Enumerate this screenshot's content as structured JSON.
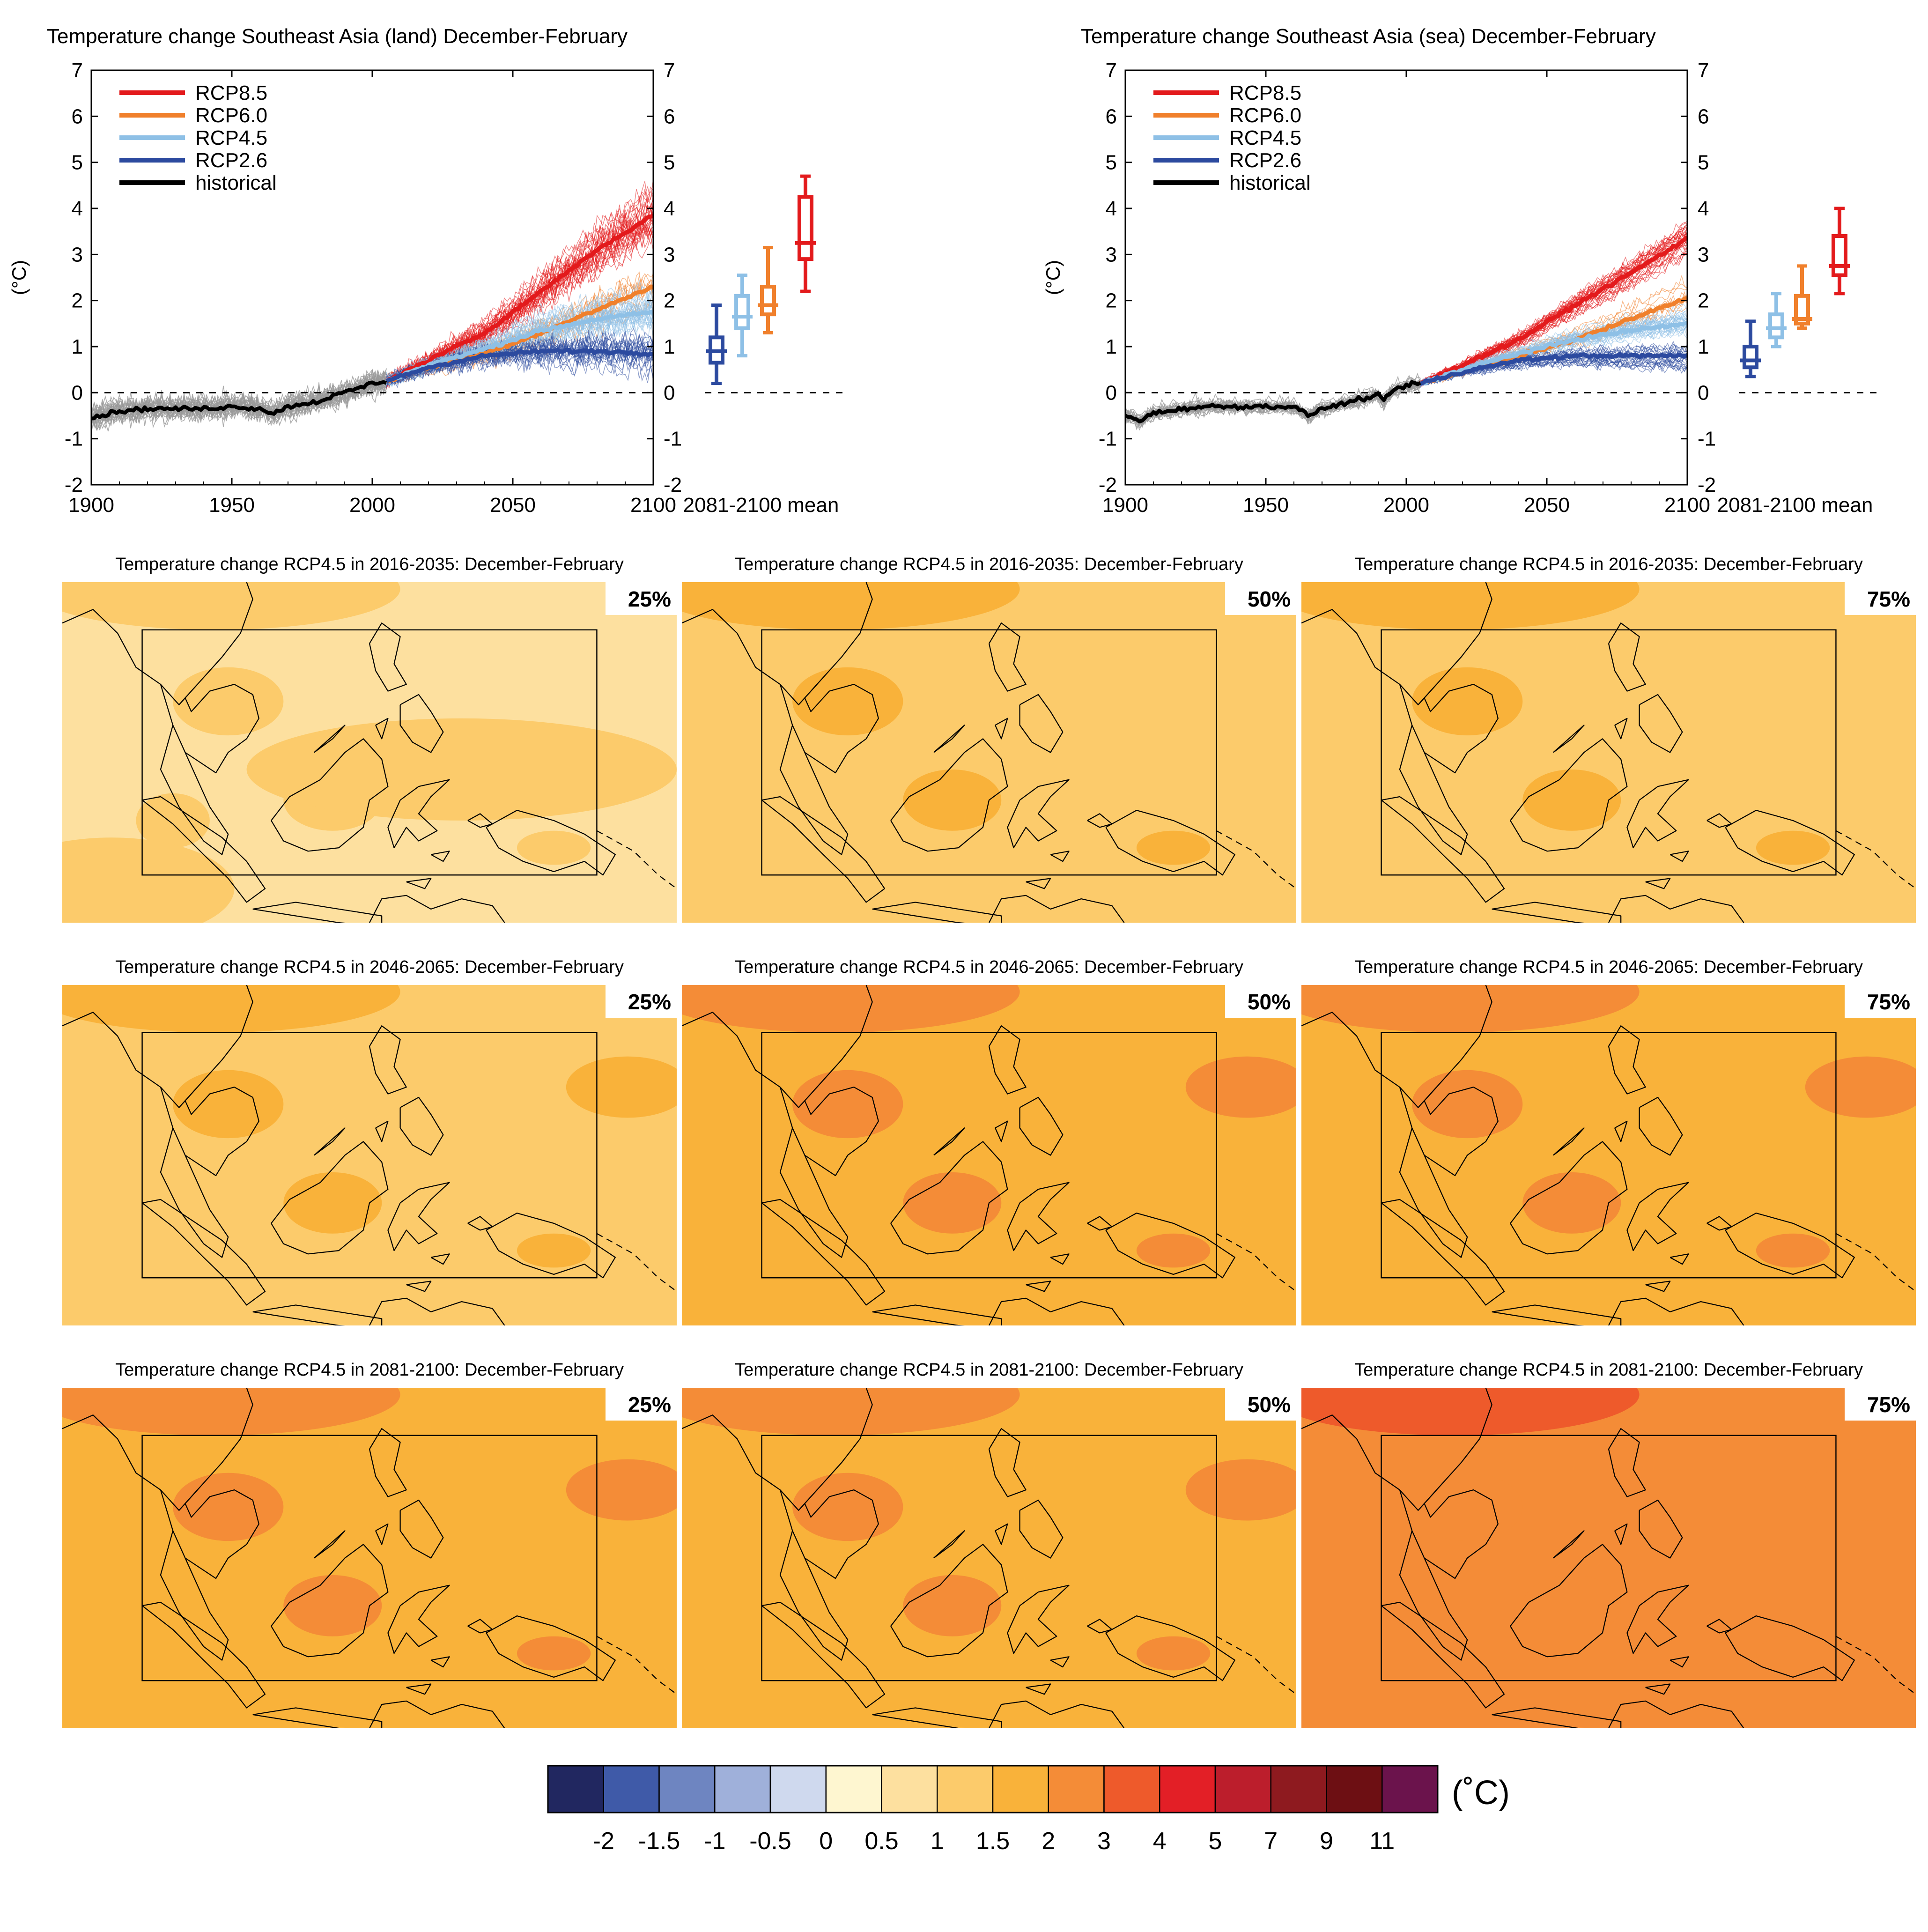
{
  "colors": {
    "rcp85": "#e31a1c",
    "rcp60": "#f0802c",
    "rcp45": "#8ec0e6",
    "rcp26": "#2c4a9f",
    "historical": "#000000",
    "historical_members": "#9a9a9a"
  },
  "timeseries": [
    {
      "title": "Temperature change Southeast Asia (land) December-February",
      "ylabel": "(°C)",
      "xlim": [
        1900,
        2100
      ],
      "ylim": [
        -2,
        7
      ],
      "xticks": [
        "1900",
        "1950",
        "2000",
        "2050",
        "2100"
      ],
      "yticks": [
        "-2",
        "-1",
        "0",
        "1",
        "2",
        "3",
        "4",
        "5",
        "6",
        "7"
      ],
      "legend": [
        "RCP8.5",
        "RCP6.0",
        "RCP4.5",
        "RCP2.6",
        "historical"
      ],
      "box_label": "2081-2100 mean",
      "historical_mean": [
        [
          1900,
          -0.55
        ],
        [
          1910,
          -0.4
        ],
        [
          1920,
          -0.35
        ],
        [
          1930,
          -0.35
        ],
        [
          1940,
          -0.35
        ],
        [
          1950,
          -0.3
        ],
        [
          1960,
          -0.35
        ],
        [
          1965,
          -0.45
        ],
        [
          1970,
          -0.3
        ],
        [
          1980,
          -0.2
        ],
        [
          1990,
          0.0
        ],
        [
          1995,
          0.1
        ],
        [
          2000,
          0.2
        ],
        [
          2005,
          0.25
        ]
      ],
      "scenario_means": {
        "rcp26": [
          [
            2005,
            0.25
          ],
          [
            2020,
            0.55
          ],
          [
            2040,
            0.8
          ],
          [
            2060,
            0.9
          ],
          [
            2080,
            0.9
          ],
          [
            2100,
            0.85
          ]
        ],
        "rcp45": [
          [
            2005,
            0.25
          ],
          [
            2020,
            0.6
          ],
          [
            2040,
            0.95
          ],
          [
            2060,
            1.35
          ],
          [
            2080,
            1.6
          ],
          [
            2100,
            1.75
          ]
        ],
        "rcp60": [
          [
            2005,
            0.25
          ],
          [
            2020,
            0.55
          ],
          [
            2040,
            0.85
          ],
          [
            2060,
            1.3
          ],
          [
            2080,
            1.8
          ],
          [
            2100,
            2.3
          ]
        ],
        "rcp85": [
          [
            2005,
            0.25
          ],
          [
            2020,
            0.7
          ],
          [
            2040,
            1.3
          ],
          [
            2060,
            2.2
          ],
          [
            2080,
            3.1
          ],
          [
            2100,
            3.85
          ]
        ]
      },
      "boxes": {
        "rcp26": {
          "min": 0.2,
          "q1": 0.65,
          "median": 0.9,
          "q3": 1.2,
          "max": 1.9
        },
        "rcp45": {
          "min": 0.8,
          "q1": 1.4,
          "median": 1.65,
          "q3": 2.1,
          "max": 2.55
        },
        "rcp60": {
          "min": 1.3,
          "q1": 1.7,
          "median": 1.9,
          "q3": 2.3,
          "max": 3.15
        },
        "rcp85": {
          "min": 2.2,
          "q1": 2.9,
          "median": 3.25,
          "q3": 4.25,
          "max": 4.7
        }
      }
    },
    {
      "title": "Temperature change Southeast Asia (sea) December-February",
      "ylabel": "(°C)",
      "xlim": [
        1900,
        2100
      ],
      "ylim": [
        -2,
        7
      ],
      "xticks": [
        "1900",
        "1950",
        "2000",
        "2050",
        "2100"
      ],
      "yticks": [
        "-2",
        "-1",
        "0",
        "1",
        "2",
        "3",
        "4",
        "5",
        "6",
        "7"
      ],
      "legend": [
        "RCP8.5",
        "RCP6.0",
        "RCP4.5",
        "RCP2.6",
        "historical"
      ],
      "box_label": "2081-2100 mean",
      "historical_mean": [
        [
          1900,
          -0.5
        ],
        [
          1905,
          -0.6
        ],
        [
          1910,
          -0.45
        ],
        [
          1920,
          -0.35
        ],
        [
          1930,
          -0.3
        ],
        [
          1940,
          -0.3
        ],
        [
          1950,
          -0.3
        ],
        [
          1960,
          -0.3
        ],
        [
          1965,
          -0.5
        ],
        [
          1970,
          -0.35
        ],
        [
          1980,
          -0.2
        ],
        [
          1990,
          -0.05
        ],
        [
          1992,
          -0.2
        ],
        [
          1995,
          0.05
        ],
        [
          2000,
          0.15
        ],
        [
          2005,
          0.2
        ]
      ],
      "scenario_means": {
        "rcp26": [
          [
            2005,
            0.2
          ],
          [
            2020,
            0.45
          ],
          [
            2040,
            0.7
          ],
          [
            2060,
            0.8
          ],
          [
            2080,
            0.8
          ],
          [
            2100,
            0.8
          ]
        ],
        "rcp45": [
          [
            2005,
            0.2
          ],
          [
            2020,
            0.5
          ],
          [
            2040,
            0.85
          ],
          [
            2060,
            1.15
          ],
          [
            2080,
            1.35
          ],
          [
            2100,
            1.5
          ]
        ],
        "rcp60": [
          [
            2005,
            0.2
          ],
          [
            2020,
            0.45
          ],
          [
            2040,
            0.8
          ],
          [
            2060,
            1.15
          ],
          [
            2080,
            1.6
          ],
          [
            2100,
            2.05
          ]
        ],
        "rcp85": [
          [
            2005,
            0.2
          ],
          [
            2020,
            0.6
          ],
          [
            2040,
            1.15
          ],
          [
            2060,
            1.9
          ],
          [
            2080,
            2.6
          ],
          [
            2100,
            3.35
          ]
        ]
      },
      "boxes": {
        "rcp26": {
          "min": 0.35,
          "q1": 0.55,
          "median": 0.7,
          "q3": 1.0,
          "max": 1.55
        },
        "rcp45": {
          "min": 1.0,
          "q1": 1.2,
          "median": 1.4,
          "q3": 1.7,
          "max": 2.15
        },
        "rcp60": {
          "min": 1.4,
          "q1": 1.5,
          "median": 1.6,
          "q3": 2.1,
          "max": 2.75
        },
        "rcp85": {
          "min": 2.15,
          "q1": 2.55,
          "median": 2.75,
          "q3": 3.4,
          "max": 4.0
        }
      }
    }
  ],
  "maps": [
    {
      "title": "Temperature change RCP4.5 in 2016-2035: December-February",
      "pct": "25%",
      "base": 0.5
    },
    {
      "title": "Temperature change RCP4.5 in 2016-2035: December-February",
      "pct": "50%",
      "base": 1.0
    },
    {
      "title": "Temperature change RCP4.5 in 2016-2035: December-February",
      "pct": "75%",
      "base": 1.0
    },
    {
      "title": "Temperature change RCP4.5 in 2046-2065: December-February",
      "pct": "25%",
      "base": 1.0
    },
    {
      "title": "Temperature change RCP4.5 in 2046-2065: December-February",
      "pct": "50%",
      "base": 1.5
    },
    {
      "title": "Temperature change RCP4.5 in 2046-2065: December-February",
      "pct": "75%",
      "base": 1.5
    },
    {
      "title": "Temperature change RCP4.5 in 2081-2100: December-February",
      "pct": "25%",
      "base": 1.5
    },
    {
      "title": "Temperature change RCP4.5 in 2081-2100: December-February",
      "pct": "50%",
      "base": 1.5
    },
    {
      "title": "Temperature change RCP4.5 in 2081-2100: December-February",
      "pct": "75%",
      "base": 2.0
    }
  ],
  "colorbar": {
    "unit": "(˚C)",
    "colors": [
      "#212760",
      "#3f5aa8",
      "#6e85c1",
      "#9fb0da",
      "#cfd9ee",
      "#fef6d0",
      "#fde09f",
      "#fccb6b",
      "#f9b23a",
      "#f48c37",
      "#ee5a2b",
      "#e31f26",
      "#bc1e2c",
      "#8e1a1f",
      "#6d0f13",
      "#6b134c"
    ],
    "labels": [
      "-2",
      "-1.5",
      "-1",
      "-0.5",
      "0",
      "0.5",
      "1",
      "1.5",
      "2",
      "3",
      "4",
      "5",
      "7",
      "9",
      "11"
    ]
  }
}
